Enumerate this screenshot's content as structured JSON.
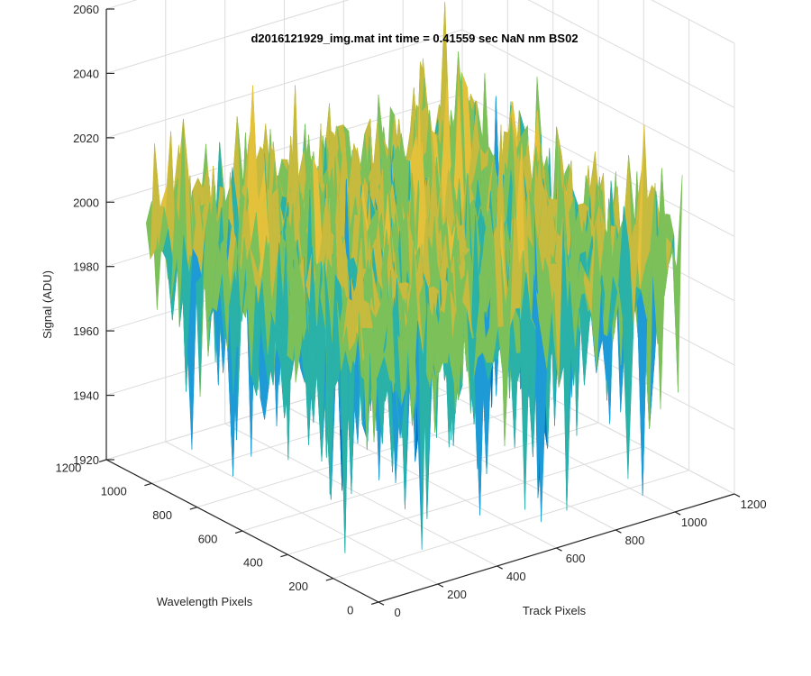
{
  "chart_data": {
    "type": "surface",
    "title": "d2016121929_img.mat int time = 0.41559 sec  NaN nm BS02",
    "xlabel": "Track Pixels",
    "ylabel": "Wavelength Pixels",
    "zlabel": "Signal (ADU)",
    "xlim": [
      0,
      1200
    ],
    "ylim": [
      0,
      1200
    ],
    "zlim": [
      1920,
      2060
    ],
    "x_ticks": [
      "0",
      "200",
      "400",
      "600",
      "800",
      "1000",
      "1200"
    ],
    "y_ticks": [
      "0",
      "200",
      "400",
      "600",
      "800",
      "1000",
      "1200"
    ],
    "z_ticks": [
      "1920",
      "1940",
      "1960",
      "1980",
      "2000",
      "2020",
      "2040",
      "2060"
    ],
    "grid": true,
    "data_extent": {
      "x": [
        0,
        1024
      ],
      "y": [
        0,
        1024
      ]
    },
    "signal_mean": 1995,
    "signal_range": [
      1925,
      2045
    ],
    "colormap": [
      "#0072BD",
      "#1E9BD6",
      "#2AB1A8",
      "#7CC05A",
      "#C6BA3F",
      "#E3C13A"
    ],
    "colors": {
      "axis": "#262626",
      "grid": "#DCDCDC",
      "background": "#FFFFFF"
    }
  }
}
